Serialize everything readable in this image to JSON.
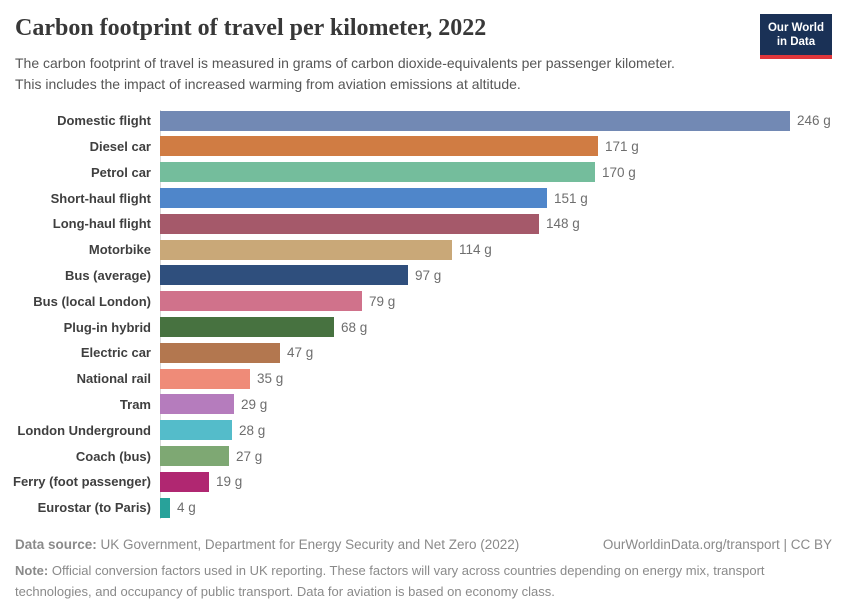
{
  "header": {
    "title": "Carbon footprint of travel per kilometer, 2022",
    "subtitle_lines": [
      "The carbon footprint of travel is measured in grams of carbon dioxide-equivalents per passenger kilometer.",
      "This includes the impact of increased warming from aviation emissions at altitude."
    ],
    "logo": {
      "line1": "Our World",
      "line2": "in Data",
      "bg_color": "#1a3156",
      "accent_color": "#e0363b"
    }
  },
  "chart_data": {
    "type": "bar",
    "orientation": "horizontal",
    "title": "Carbon footprint of travel per kilometer, 2022",
    "unit": "grams of CO2-equivalents per passenger kilometer",
    "xlim": [
      0,
      246
    ],
    "grid": false,
    "categories": [
      "Domestic flight",
      "Diesel car",
      "Petrol car",
      "Short-haul flight",
      "Long-haul flight",
      "Motorbike",
      "Bus (average)",
      "Bus (local London)",
      "Plug-in hybrid",
      "Electric car",
      "National rail",
      "Tram",
      "London Underground",
      "Coach (bus)",
      "Ferry (foot passenger)",
      "Eurostar (to Paris)"
    ],
    "values": [
      246,
      171,
      170,
      151,
      148,
      114,
      97,
      79,
      68,
      47,
      35,
      29,
      28,
      27,
      19,
      4
    ],
    "value_labels": [
      "246 g",
      "171 g",
      "170 g",
      "151 g",
      "148 g",
      "114 g",
      "97 g",
      "79 g",
      "68 g",
      "47 g",
      "35 g",
      "29 g",
      "28 g",
      "27 g",
      "19 g",
      "4 g"
    ],
    "colors": [
      "#7289b4",
      "#d07c43",
      "#74bd9c",
      "#4f86ca",
      "#a5596a",
      "#c9a878",
      "#2f4f7d",
      "#d0728b",
      "#477240",
      "#b3774f",
      "#ef8b78",
      "#b57cbd",
      "#54bcca",
      "#7ea873",
      "#b02771",
      "#28a29a"
    ]
  },
  "footer": {
    "source_label": "Data source:",
    "source_text": "UK Government, Department for Energy Security and Net Zero (2022)",
    "credit": "OurWorldinData.org/transport | CC BY",
    "note_label": "Note:",
    "note_lines": [
      "Official conversion factors used in UK reporting. These factors will vary across countries depending on energy mix, transport",
      "technologies, and occupancy of public transport. Data for aviation is based on economy class."
    ]
  }
}
